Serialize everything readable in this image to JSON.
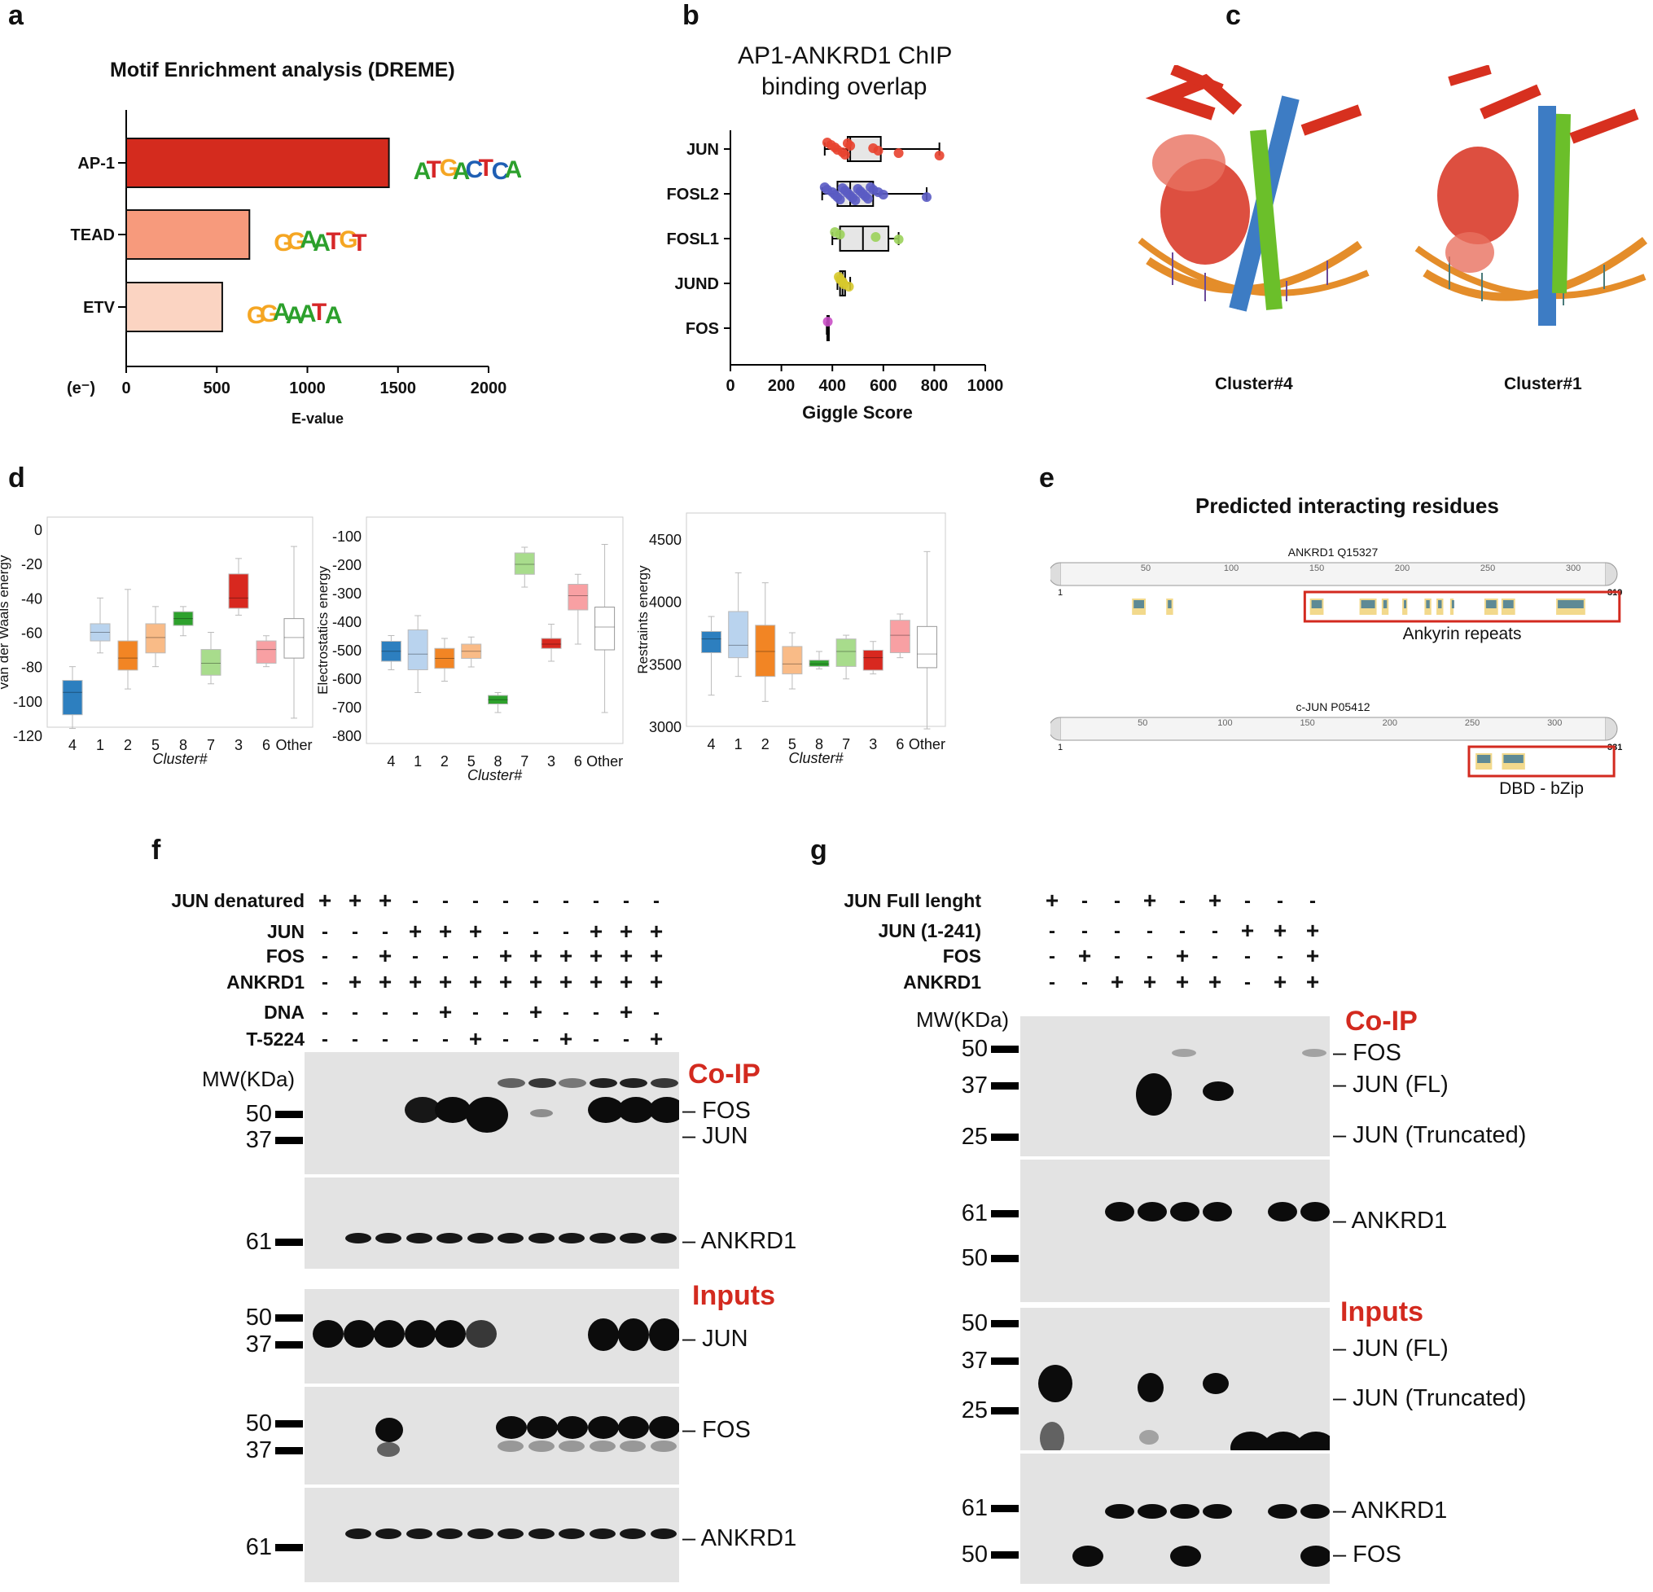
{
  "panels": {
    "a": {
      "label": "a",
      "title": "Motif Enrichment analysis (DREME)",
      "e_symbol": "(e⁻)",
      "xlabel": "E-value",
      "motifs": [
        "ATGACTCA",
        "GGAATGT",
        "GGAAATA"
      ]
    },
    "b": {
      "label": "b",
      "title_line1": "AP1-ANKRD1 ChIP",
      "title_line2": "binding overlap",
      "xlabel": "Giggle Score"
    },
    "c": {
      "label": "c",
      "captions": [
        "Cluster#4",
        "Cluster#1"
      ]
    },
    "d": {
      "label": "d",
      "ylabels": [
        "van der Waals energy",
        "Electrostatics energy",
        "Restraints energy"
      ],
      "xlabel": "Cluster#"
    },
    "e": {
      "label": "e",
      "title": "Predicted interacting residues",
      "track1": {
        "name": "ANKRD1 Q15327",
        "start": "1",
        "end": "319",
        "ticks": [
          "50",
          "100",
          "150",
          "200",
          "250",
          "300"
        ],
        "region_label": "Ankyrin repeats"
      },
      "track2": {
        "name": "c-JUN P05412",
        "start": "1",
        "end": "331",
        "ticks": [
          "50",
          "100",
          "150",
          "200",
          "250",
          "300"
        ],
        "region_label": "DBD - bZip"
      }
    },
    "f": {
      "label": "f",
      "conditions": [
        {
          "name": "JUN denatured",
          "signs": [
            "+",
            "+",
            "+",
            "-",
            "-",
            "-",
            "-",
            "-",
            "-",
            "-",
            "-",
            "-"
          ]
        },
        {
          "name": "JUN",
          "signs": [
            "-",
            "-",
            "-",
            "+",
            "+",
            "+",
            "-",
            "-",
            "-",
            "+",
            "+",
            "+"
          ]
        },
        {
          "name": "FOS",
          "signs": [
            "-",
            "-",
            "+",
            "-",
            "-",
            "-",
            "+",
            "+",
            "+",
            "+",
            "+",
            "+"
          ]
        },
        {
          "name": "ANKRD1",
          "signs": [
            "-",
            "+",
            "+",
            "+",
            "+",
            "+",
            "+",
            "+",
            "+",
            "+",
            "+",
            "+"
          ]
        },
        {
          "name": "DNA",
          "signs": [
            "-",
            "-",
            "-",
            "-",
            "+",
            "-",
            "-",
            "+",
            "-",
            "-",
            "+",
            "-"
          ]
        },
        {
          "name": "T-5224",
          "signs": [
            "-",
            "-",
            "-",
            "-",
            "-",
            "+",
            "-",
            "-",
            "+",
            "-",
            "-",
            "+"
          ]
        }
      ],
      "mw_header": "MW(KDa)",
      "coip_label": "Co-IP",
      "inputs_label": "Inputs",
      "mw": {
        "b1a": "50",
        "b1b": "37",
        "b2": "61",
        "b3a": "50",
        "b3b": "37",
        "b4a": "50",
        "b4b": "37",
        "b5": "61"
      },
      "bands": {
        "b1a": "FOS",
        "b1b": "JUN",
        "b2": "ANKRD1",
        "b3": "JUN",
        "b4": "FOS",
        "b5": "ANKRD1"
      }
    },
    "g": {
      "label": "g",
      "conditions": [
        {
          "name": "JUN Full lenght",
          "signs": [
            "+",
            "-",
            "-",
            "+",
            "-",
            "+",
            "-",
            "-",
            "-"
          ]
        },
        {
          "name": "JUN (1-241)",
          "signs": [
            "-",
            "-",
            "-",
            "-",
            "-",
            "-",
            "+",
            "+",
            "+"
          ]
        },
        {
          "name": "FOS",
          "signs": [
            "-",
            "+",
            "-",
            "-",
            "+",
            "-",
            "-",
            "-",
            "+"
          ]
        },
        {
          "name": "ANKRD1",
          "signs": [
            "-",
            "-",
            "+",
            "+",
            "+",
            "+",
            "-",
            "+",
            "+"
          ]
        }
      ],
      "mw_header": "MW(KDa)",
      "coip_label": "Co-IP",
      "inputs_label": "Inputs",
      "mw": {
        "b1a": "50",
        "b1b": "37",
        "b1c": "25",
        "b2a": "61",
        "b2b": "50",
        "b3a": "50",
        "b3b": "37",
        "b3c": "25",
        "b4a": "61",
        "b4b": "50"
      },
      "bands": {
        "b1a": "FOS",
        "b1b": "JUN (FL)",
        "b1c": "JUN (Truncated)",
        "b2": "ANKRD1",
        "b3a": "JUN (FL)",
        "b3b": "JUN (Truncated)",
        "b4a": "ANKRD1",
        "b4b": "FOS"
      }
    }
  },
  "chart_data": [
    {
      "type": "bar",
      "title": "Motif Enrichment analysis (DREME)",
      "categories": [
        "AP-1",
        "TEAD",
        "ETV"
      ],
      "values": [
        1450,
        680,
        530
      ],
      "xlabel": "E-value",
      "xlim": [
        0,
        2000
      ],
      "xticks": [
        "0",
        "500",
        "1000",
        "1500",
        "2000"
      ],
      "colors": [
        "#d42b1e",
        "#f79a7c",
        "#fbd4c2"
      ],
      "orientation": "horizontal"
    },
    {
      "type": "scatter",
      "title": "AP1-ANKRD1 ChIP binding overlap",
      "xlabel": "Giggle Score",
      "xlim": [
        0,
        1000
      ],
      "xticks": [
        "0",
        "200",
        "400",
        "600",
        "800",
        "1000"
      ],
      "categories": [
        "JUN",
        "FOSL2",
        "FOSL1",
        "JUND",
        "FOS"
      ],
      "boxes": [
        {
          "name": "JUN",
          "q1": 460,
          "median": 470,
          "q3": 590,
          "min": 370,
          "max": 820,
          "color": "#e8432f",
          "points": [
            380,
            395,
            410,
            420,
            440,
            450,
            460,
            470,
            560,
            580,
            660,
            820
          ]
        },
        {
          "name": "FOSL2",
          "q1": 420,
          "median": 470,
          "q3": 560,
          "min": 360,
          "max": 770,
          "color": "#5a5bc3",
          "points": [
            370,
            380,
            400,
            410,
            420,
            430,
            440,
            450,
            460,
            470,
            480,
            490,
            500,
            510,
            520,
            530,
            540,
            550,
            560,
            580,
            600,
            770
          ]
        },
        {
          "name": "FOSL1",
          "q1": 430,
          "median": 520,
          "q3": 620,
          "min": 400,
          "max": 660,
          "color": "#9bd25a",
          "points": [
            410,
            430,
            570,
            660
          ]
        },
        {
          "name": "JUND",
          "q1": 430,
          "median": 440,
          "q3": 450,
          "min": 420,
          "max": 470,
          "color": "#d7c92c",
          "points": [
            425,
            430,
            440,
            445,
            465
          ]
        },
        {
          "name": "FOS",
          "q1": 380,
          "median": 382,
          "q3": 385,
          "min": 378,
          "max": 386,
          "color": "#c94fc5",
          "points": [
            382
          ]
        }
      ]
    },
    {
      "type": "box",
      "ylabel": "van der Waals energy",
      "xlabel": "Cluster#",
      "categories": [
        "4",
        "1",
        "2",
        "5",
        "8",
        "7",
        "3",
        "6",
        "Other"
      ],
      "ylim": [
        -120,
        0
      ],
      "yticks": [
        "0",
        "-20",
        "-40",
        "-60",
        "-80",
        "-100",
        "-120"
      ],
      "boxes": [
        {
          "q1": -108,
          "median": -95,
          "q3": -88,
          "min": -116,
          "max": -80
        },
        {
          "q1": -65,
          "median": -60,
          "q3": -55,
          "min": -72,
          "max": -40
        },
        {
          "q1": -82,
          "median": -75,
          "q3": -65,
          "min": -93,
          "max": -35
        },
        {
          "q1": -72,
          "median": -63,
          "q3": -55,
          "min": -80,
          "max": -45
        },
        {
          "q1": -56,
          "median": -52,
          "q3": -48,
          "min": -62,
          "max": -45
        },
        {
          "q1": -85,
          "median": -78,
          "q3": -70,
          "min": -90,
          "max": -60
        },
        {
          "q1": -46,
          "median": -40,
          "q3": -26,
          "min": -50,
          "max": -17
        },
        {
          "q1": -78,
          "median": -70,
          "q3": -65,
          "min": -80,
          "max": -62
        },
        {
          "q1": -75,
          "median": -63,
          "q3": -52,
          "min": -110,
          "max": -10
        }
      ],
      "colors": [
        "#2d7fbf",
        "#b9d3ee",
        "#f28524",
        "#f9bb87",
        "#2ea12d",
        "#a8dc8c",
        "#d8281f",
        "#f8a0a3",
        "#ffffff"
      ]
    },
    {
      "type": "box",
      "ylabel": "Electrostatics energy",
      "xlabel": "Cluster#",
      "categories": [
        "4",
        "1",
        "2",
        "5",
        "8",
        "7",
        "3",
        "6",
        "Other"
      ],
      "ylim": [
        -800,
        -100
      ],
      "yticks": [
        "-100",
        "-200",
        "-300",
        "-400",
        "-500",
        "-600",
        "-700",
        "-800"
      ],
      "boxes": [
        {
          "q1": -540,
          "median": -505,
          "q3": -470,
          "min": -570,
          "max": -450
        },
        {
          "q1": -570,
          "median": -515,
          "q3": -430,
          "min": -650,
          "max": -380
        },
        {
          "q1": -565,
          "median": -530,
          "q3": -495,
          "min": -610,
          "max": -460
        },
        {
          "q1": -530,
          "median": -505,
          "q3": -480,
          "min": -560,
          "max": -455
        },
        {
          "q1": -690,
          "median": -675,
          "q3": -660,
          "min": -720,
          "max": -650
        },
        {
          "q1": -235,
          "median": -200,
          "q3": -160,
          "min": -280,
          "max": -140
        },
        {
          "q1": -495,
          "median": -480,
          "q3": -460,
          "min": -540,
          "max": -410
        },
        {
          "q1": -360,
          "median": -310,
          "q3": -270,
          "min": -480,
          "max": -235
        },
        {
          "q1": -500,
          "median": -420,
          "q3": -350,
          "min": -720,
          "max": -130
        }
      ],
      "colors": [
        "#2d7fbf",
        "#b9d3ee",
        "#f28524",
        "#f9bb87",
        "#2ea12d",
        "#a8dc8c",
        "#d8281f",
        "#f8a0a3",
        "#ffffff"
      ]
    },
    {
      "type": "box",
      "ylabel": "Restraints energy",
      "xlabel": "Cluster#",
      "categories": [
        "4",
        "1",
        "2",
        "5",
        "8",
        "7",
        "3",
        "6",
        "Other"
      ],
      "ylim": [
        3000,
        4500
      ],
      "yticks": [
        "4500",
        "4000",
        "3500",
        "3000"
      ],
      "boxes": [
        {
          "q1": 3590,
          "median": 3700,
          "q3": 3760,
          "min": 3250,
          "max": 3880
        },
        {
          "q1": 3550,
          "median": 3650,
          "q3": 3920,
          "min": 3400,
          "max": 4230
        },
        {
          "q1": 3400,
          "median": 3600,
          "q3": 3810,
          "min": 3200,
          "max": 4150
        },
        {
          "q1": 3420,
          "median": 3500,
          "q3": 3640,
          "min": 3300,
          "max": 3750
        },
        {
          "q1": 3480,
          "median": 3500,
          "q3": 3530,
          "min": 3460,
          "max": 3600
        },
        {
          "q1": 3480,
          "median": 3600,
          "q3": 3700,
          "min": 3380,
          "max": 3730
        },
        {
          "q1": 3450,
          "median": 3550,
          "q3": 3610,
          "min": 3420,
          "max": 3680
        },
        {
          "q1": 3590,
          "median": 3730,
          "q3": 3850,
          "min": 3550,
          "max": 3900
        },
        {
          "q1": 3470,
          "median": 3580,
          "q3": 3800,
          "min": 2980,
          "max": 4400
        }
      ],
      "colors": [
        "#2d7fbf",
        "#b9d3ee",
        "#f28524",
        "#f9bb87",
        "#2ea12d",
        "#a8dc8c",
        "#d8281f",
        "#f8a0a3",
        "#ffffff"
      ]
    }
  ]
}
